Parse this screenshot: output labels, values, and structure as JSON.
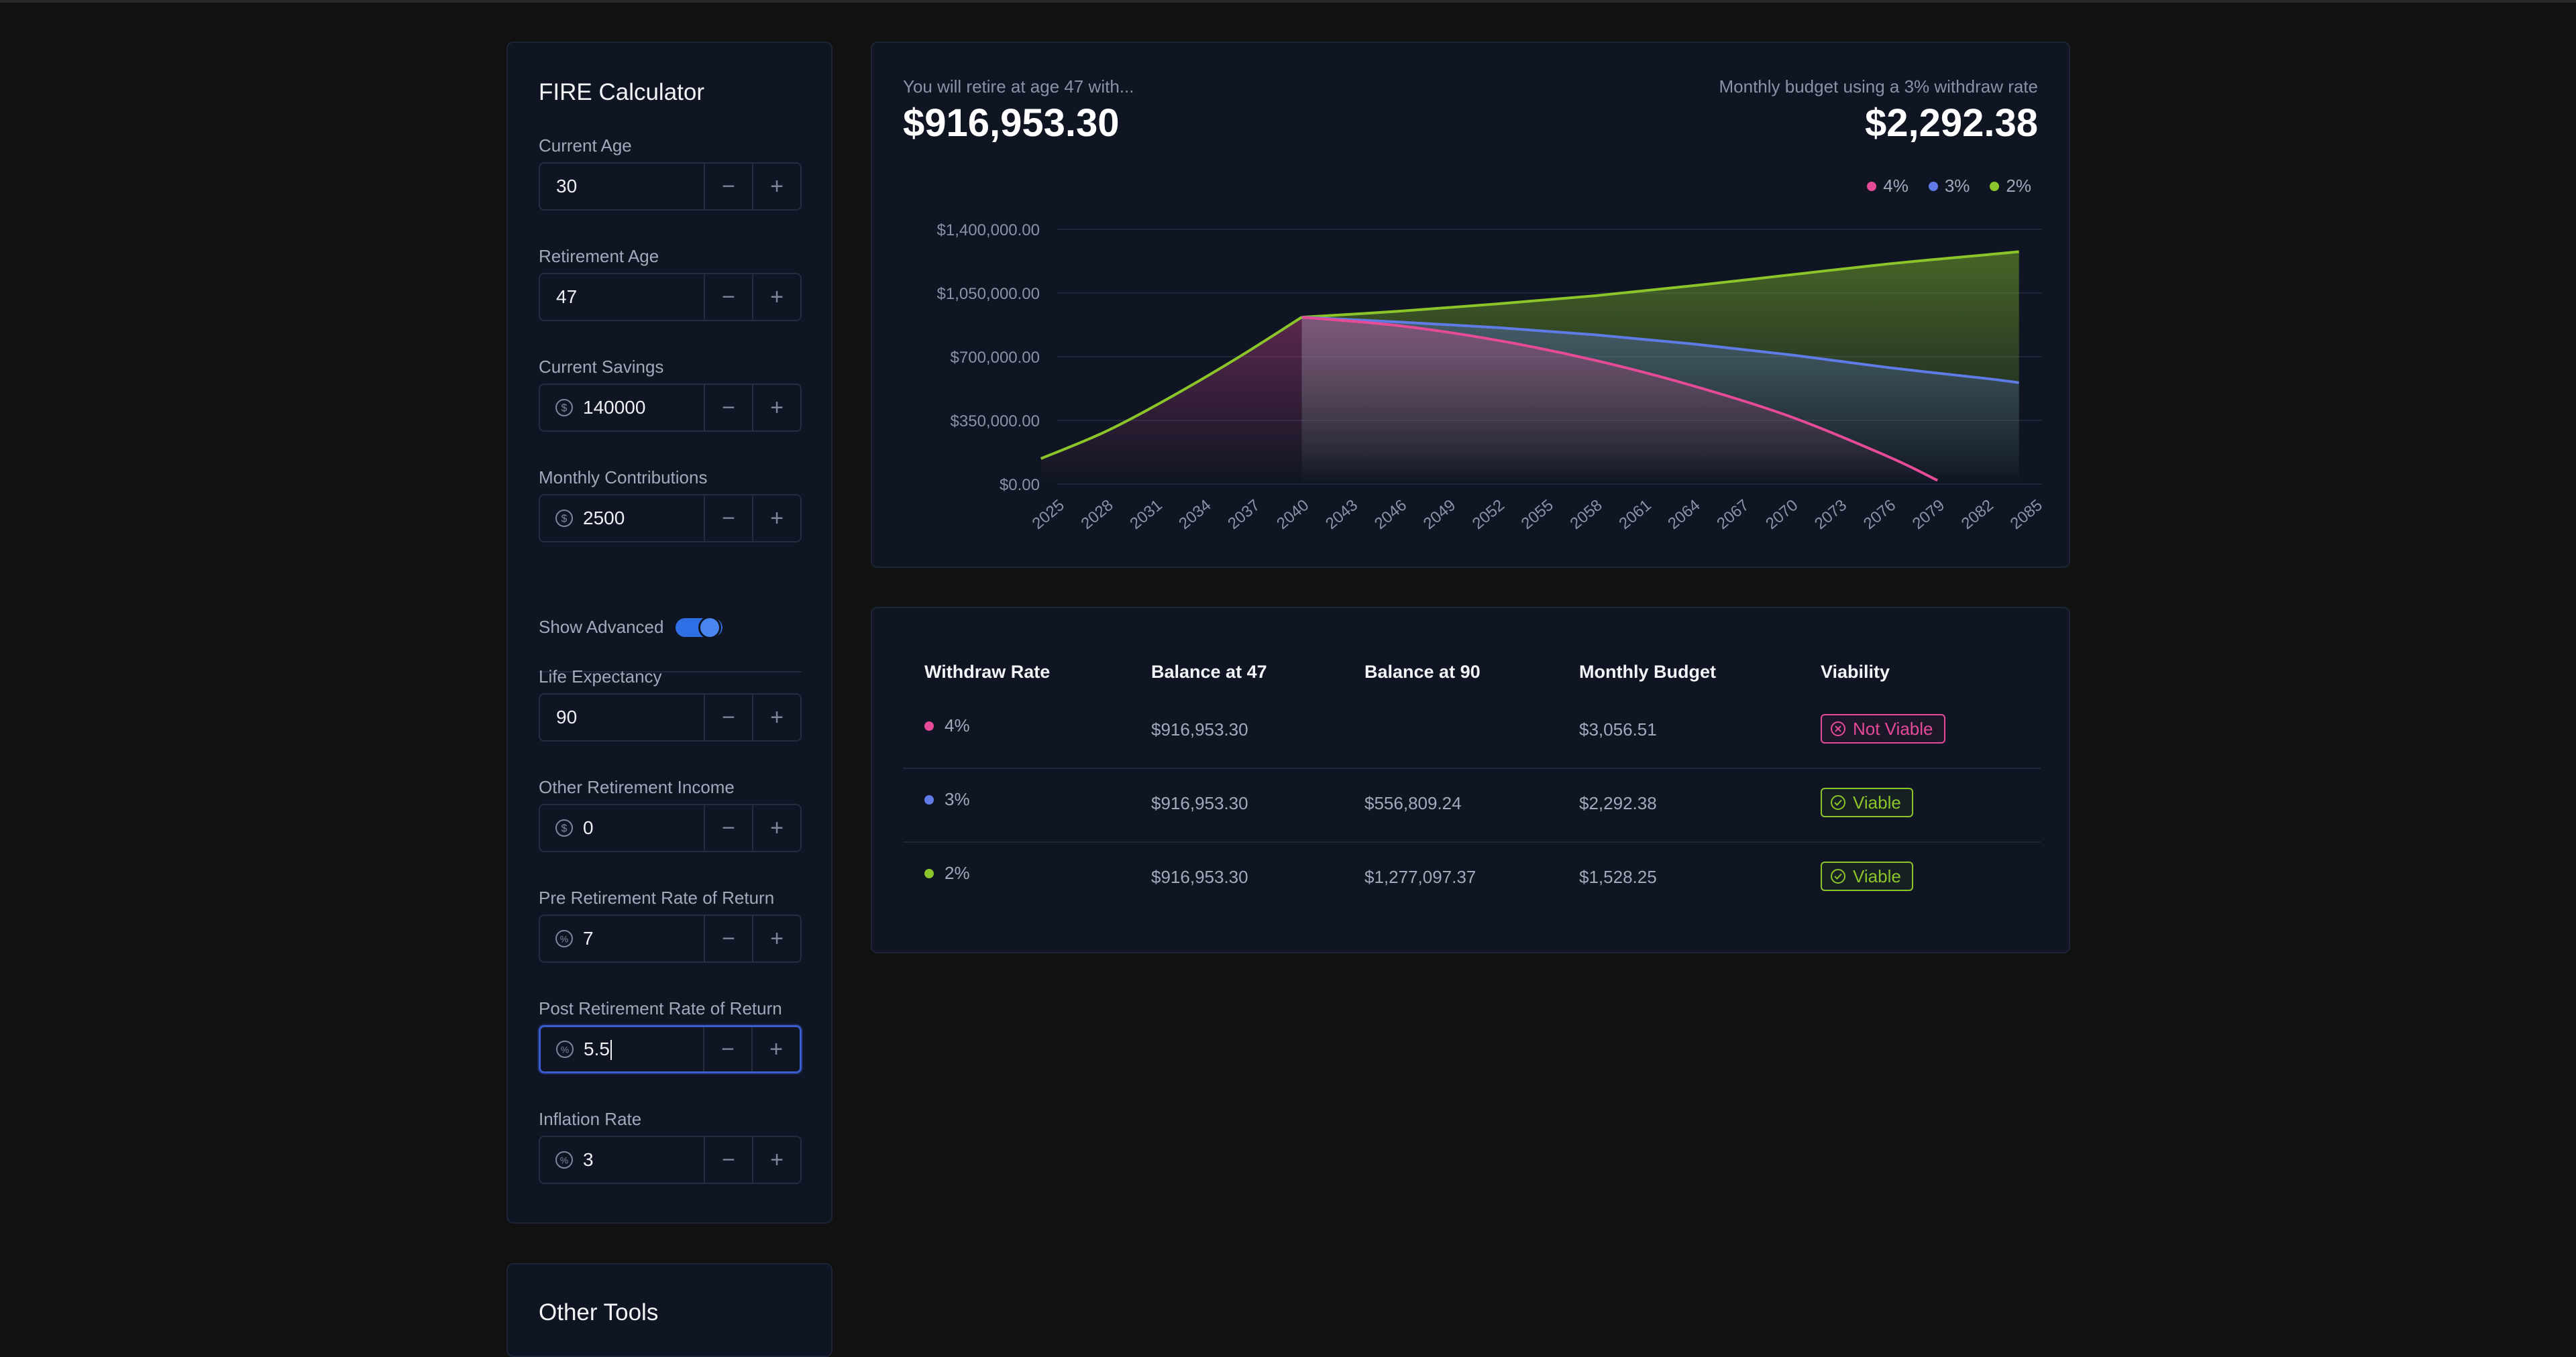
{
  "calculator": {
    "title": "FIRE Calculator",
    "fields": [
      {
        "label": "Current Age",
        "value": "30",
        "icon": "none"
      },
      {
        "label": "Retirement Age",
        "value": "47",
        "icon": "none"
      },
      {
        "label": "Current Savings",
        "value": "140000",
        "icon": "dollar-icon"
      },
      {
        "label": "Monthly Contributions",
        "value": "2500",
        "icon": "dollar-icon"
      }
    ],
    "advanced_label": "Show Advanced",
    "advanced_on": true,
    "advanced_fields": [
      {
        "label": "Life Expectancy",
        "value": "90",
        "icon": "none"
      },
      {
        "label": "Other Retirement Income",
        "value": "0",
        "icon": "dollar-icon"
      },
      {
        "label": "Pre Retirement Rate of Return",
        "value": "7",
        "icon": "percent-icon"
      },
      {
        "label": "Post Retirement Rate of Return",
        "value": "5.5",
        "icon": "percent-icon"
      },
      {
        "label": "Inflation Rate",
        "value": "3",
        "icon": "percent-icon"
      }
    ],
    "minus": "−",
    "plus": "+"
  },
  "other_tools": {
    "title": "Other Tools"
  },
  "summary": {
    "retire_text": "You will retire at age 47 with...",
    "retire_amount": "$916,953.30",
    "budget_text": "Monthly budget using a 3% withdraw rate",
    "budget_amount": "$2,292.38"
  },
  "legend": [
    {
      "label": "4%",
      "color": "#e64b97"
    },
    {
      "label": "3%",
      "color": "#5f7be6"
    },
    {
      "label": "2%",
      "color": "#8bc52a"
    }
  ],
  "chart_data": {
    "type": "area",
    "y_ticks": [
      "$1,400,000.00",
      "$1,050,000.00",
      "$700,000.00",
      "$350,000.00",
      "$0.00"
    ],
    "ylim": [
      0,
      1400000
    ],
    "xlim": [
      2025,
      2085
    ],
    "x_ticks": [
      "2025",
      "2028",
      "2031",
      "2034",
      "2037",
      "2040",
      "2043",
      "2046",
      "2049",
      "2052",
      "2055",
      "2058",
      "2061",
      "2064",
      "2067",
      "2070",
      "2073",
      "2076",
      "2079",
      "2082",
      "2085"
    ],
    "grid": true,
    "legend_position": "top-right",
    "accumulation": {
      "x": [
        2024,
        2028,
        2032,
        2036,
        2040
      ],
      "values": [
        140000,
        290000,
        480000,
        690000,
        917000
      ]
    },
    "series": [
      {
        "name": "4%",
        "color": "#e64b97",
        "x": [
          2040,
          2046,
          2052,
          2058,
          2064,
          2070,
          2076,
          2079
        ],
        "values": [
          917000,
          870000,
          790000,
          680000,
          540000,
          370000,
          150000,
          20000
        ]
      },
      {
        "name": "3%",
        "color": "#5f7be6",
        "x": [
          2040,
          2046,
          2052,
          2058,
          2064,
          2070,
          2076,
          2082,
          2084
        ],
        "values": [
          917000,
          890000,
          860000,
          820000,
          770000,
          710000,
          640000,
          580000,
          557000
        ]
      },
      {
        "name": "2%",
        "color": "#8bc52a",
        "x": [
          2040,
          2046,
          2052,
          2058,
          2064,
          2070,
          2076,
          2082,
          2084
        ],
        "values": [
          917000,
          950000,
          990000,
          1035000,
          1090000,
          1150000,
          1210000,
          1260000,
          1277000
        ]
      }
    ]
  },
  "table": {
    "headers": [
      "Withdraw Rate",
      "Balance at 47",
      "Balance at 90",
      "Monthly Budget",
      "Viability"
    ],
    "rows": [
      {
        "rate": "4%",
        "color": "#e64b97",
        "balance_start": "$916,953.30",
        "balance_end": "",
        "budget": "$3,056.51",
        "viability": "Not Viable",
        "viable": false
      },
      {
        "rate": "3%",
        "color": "#5f7be6",
        "balance_start": "$916,953.30",
        "balance_end": "$556,809.24",
        "budget": "$2,292.38",
        "viability": "Viable",
        "viable": true
      },
      {
        "rate": "2%",
        "color": "#8bc52a",
        "balance_start": "$916,953.30",
        "balance_end": "$1,277,097.37",
        "budget": "$1,528.25",
        "viability": "Viable",
        "viable": true
      }
    ]
  }
}
